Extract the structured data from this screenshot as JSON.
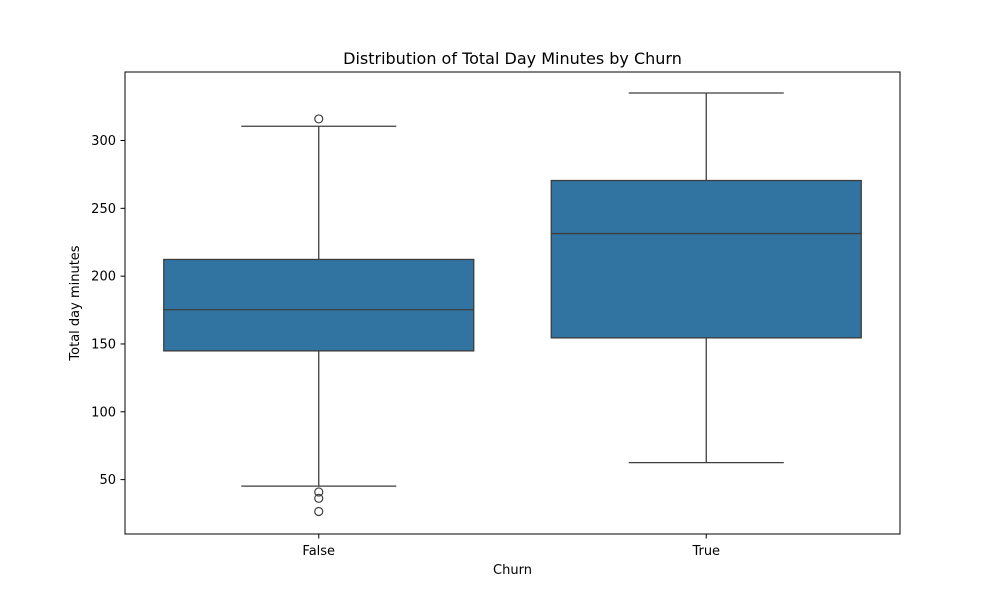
{
  "chart_data": {
    "type": "box",
    "title": "Distribution of Total Day Minutes by Churn",
    "xlabel": "Churn",
    "ylabel": "Total day minutes",
    "categories": [
      "False",
      "True"
    ],
    "yticks": [
      50,
      100,
      150,
      200,
      250,
      300
    ],
    "ylim": [
      9.9,
      350.5
    ],
    "grid": false,
    "box_color": "#3274a1",
    "line_color": "#3d3d3d",
    "boxes": [
      {
        "category": "False",
        "whisker_low": 45.2,
        "q1": 144.9,
        "median": 175.2,
        "q3": 212.3,
        "whisker_high": 310.5,
        "outliers": [
          315.9,
          40.9,
          36.2,
          26.5
        ]
      },
      {
        "category": "True",
        "whisker_low": 62.5,
        "q1": 154.5,
        "median": 231.4,
        "q3": 270.5,
        "whisker_high": 335.0,
        "outliers": []
      }
    ]
  }
}
